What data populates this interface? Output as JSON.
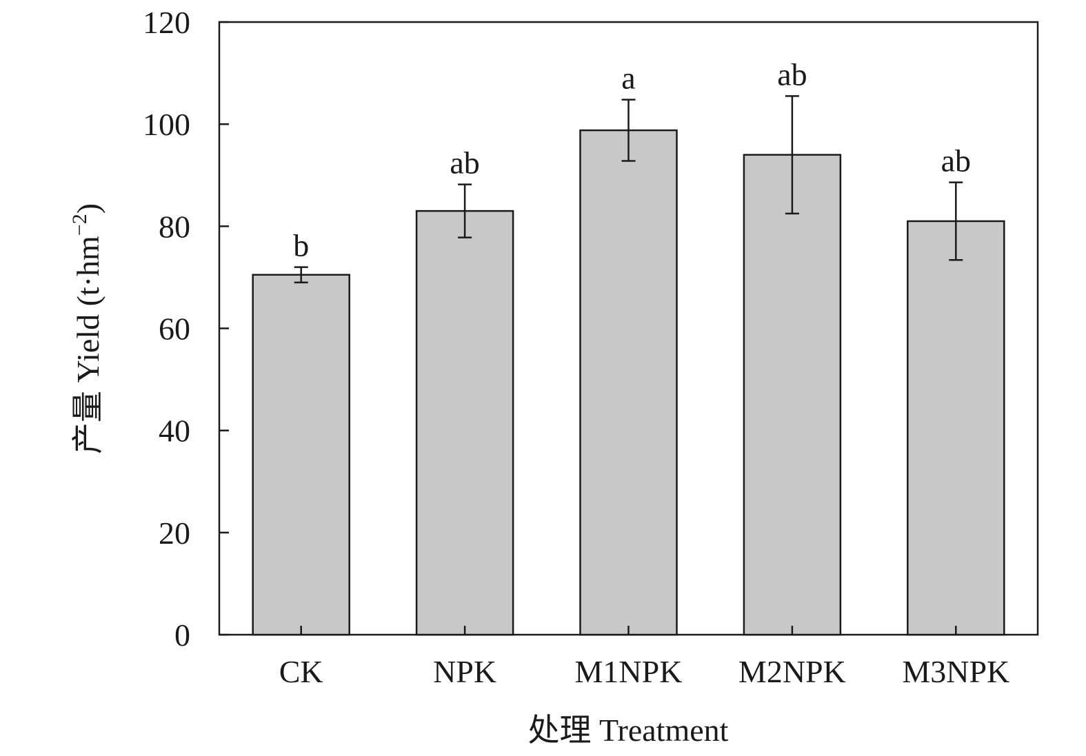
{
  "chart_data": {
    "type": "bar",
    "title": "",
    "xlabel": "处理 Treatment",
    "ylabel_main": "产量 Yield (t·hm",
    "ylabel_sup": "−2",
    "ylabel_close": ")",
    "ylim": [
      0,
      120
    ],
    "yticks": [
      0,
      20,
      40,
      60,
      80,
      100,
      120
    ],
    "categories": [
      "CK",
      "NPK",
      "M1NPK",
      "M2NPK",
      "M3NPK"
    ],
    "values": [
      70.5,
      83.0,
      98.8,
      94.0,
      81.0
    ],
    "errors": [
      1.5,
      5.2,
      6.0,
      11.5,
      7.6
    ],
    "significance": [
      "b",
      "ab",
      "a",
      "ab",
      "ab"
    ],
    "grid": false,
    "bar_color": "#c8c8c8",
    "line_color": "#1a1a1a"
  }
}
